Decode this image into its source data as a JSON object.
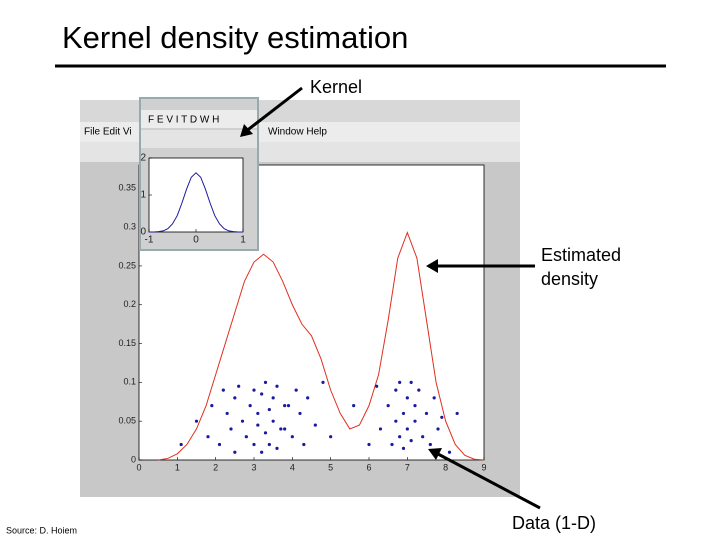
{
  "slide": {
    "title": "Kernel density estimation",
    "kernel_label": "Kernel",
    "density_label": "Estimated density",
    "data_label": "Data (1-D)",
    "source": "Source: D. Hoiem",
    "main_menu_left": "File Edit Vi",
    "main_menu_right": "Window Help",
    "inset_menu": "F E V I T D W H"
  },
  "chart_data": [
    {
      "type": "line",
      "x": [
        0.5,
        0.75,
        1,
        1.25,
        1.5,
        1.75,
        2,
        2.25,
        2.5,
        2.75,
        3,
        3.25,
        3.5,
        3.75,
        4,
        4.25,
        4.5,
        4.75,
        5,
        5.25,
        5.5,
        5.75,
        6,
        6.25,
        6.5,
        6.75,
        7,
        7.25,
        7.5,
        7.75,
        8,
        8.25,
        8.5,
        8.75,
        9
      ],
      "series": [
        {
          "color": "#e03020",
          "values": [
            0,
            0.002,
            0.008,
            0.02,
            0.04,
            0.07,
            0.11,
            0.15,
            0.19,
            0.23,
            0.255,
            0.265,
            0.255,
            0.23,
            0.2,
            0.175,
            0.16,
            0.13,
            0.09,
            0.06,
            0.04,
            0.045,
            0.07,
            0.11,
            0.18,
            0.26,
            0.293,
            0.26,
            0.18,
            0.1,
            0.05,
            0.02,
            0.006,
            0.001,
            0
          ]
        }
      ],
      "points": {
        "color": "#1a1aa0",
        "x": [
          1.1,
          1.5,
          1.8,
          1.9,
          2.1,
          2.2,
          2.3,
          2.4,
          2.5,
          2.5,
          2.6,
          2.7,
          2.8,
          2.9,
          3.0,
          3.0,
          3.1,
          3.1,
          3.2,
          3.2,
          3.3,
          3.3,
          3.4,
          3.4,
          3.5,
          3.5,
          3.6,
          3.6,
          3.7,
          3.8,
          3.8,
          3.9,
          4.0,
          4.1,
          4.2,
          4.3,
          4.4,
          4.6,
          4.8,
          5.0,
          5.6,
          6.0,
          6.2,
          6.3,
          6.5,
          6.6,
          6.7,
          6.7,
          6.8,
          6.8,
          6.9,
          6.9,
          7.0,
          7.0,
          7.1,
          7.1,
          7.2,
          7.2,
          7.3,
          7.4,
          7.5,
          7.6,
          7.7,
          7.8,
          8.1,
          7.9,
          8.3
        ],
        "y": [
          0.02,
          0.05,
          0.03,
          0.07,
          0.02,
          0.09,
          0.06,
          0.04,
          0.08,
          0.01,
          0.095,
          0.05,
          0.03,
          0.07,
          0.09,
          0.02,
          0.06,
          0.045,
          0.085,
          0.01,
          0.1,
          0.035,
          0.065,
          0.02,
          0.08,
          0.05,
          0.095,
          0.015,
          0.04,
          0.07,
          0.04,
          0.07,
          0.03,
          0.09,
          0.06,
          0.02,
          0.08,
          0.045,
          0.1,
          0.03,
          0.07,
          0.02,
          0.095,
          0.04,
          0.07,
          0.02,
          0.05,
          0.09,
          0.03,
          0.1,
          0.06,
          0.015,
          0.08,
          0.04,
          0.1,
          0.025,
          0.07,
          0.05,
          0.09,
          0.03,
          0.06,
          0.02,
          0.08,
          0.04,
          0.01,
          0.055,
          0.06
        ]
      },
      "xlim": [
        0,
        9
      ],
      "ylim": [
        0,
        0.38
      ],
      "xticks": [
        0,
        1,
        2,
        3,
        4,
        5,
        6,
        7,
        8,
        9
      ],
      "yticks": [
        0,
        0.05,
        0.1,
        0.15,
        0.2,
        0.25,
        0.3,
        0.35
      ]
    },
    {
      "type": "line",
      "x": [
        -1,
        -0.9,
        -0.8,
        -0.7,
        -0.6,
        -0.5,
        -0.4,
        -0.3,
        -0.2,
        -0.1,
        0,
        0.1,
        0.2,
        0.3,
        0.4,
        0.5,
        0.6,
        0.7,
        0.8,
        0.9,
        1
      ],
      "series": [
        {
          "color": "#1a1aa0",
          "values": [
            0,
            0,
            0.01,
            0.03,
            0.09,
            0.22,
            0.44,
            0.78,
            1.16,
            1.48,
            1.6,
            1.48,
            1.16,
            0.78,
            0.44,
            0.22,
            0.09,
            0.03,
            0.01,
            0,
            0
          ]
        }
      ],
      "xlim": [
        -1,
        1
      ],
      "ylim": [
        0,
        2
      ],
      "xticks": [
        -1,
        0,
        1
      ],
      "yticks": [
        0,
        1,
        2
      ]
    }
  ]
}
